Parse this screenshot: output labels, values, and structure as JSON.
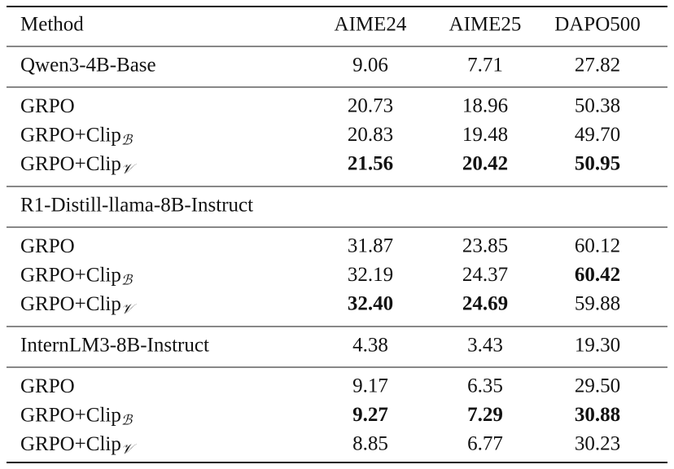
{
  "header": [
    "Method",
    "AIME24",
    "AIME25",
    "DAPO500"
  ],
  "groups": [
    {
      "model": {
        "name": "Qwen3-4B-Base",
        "values": [
          "9.06",
          "7.71",
          "27.82"
        ]
      },
      "rows": [
        {
          "method": "GRPO",
          "values": [
            "20.73",
            "18.96",
            "50.38"
          ],
          "bold": [
            false,
            false,
            false
          ]
        },
        {
          "method": "GRPO+Clip",
          "subscript": "ℬ",
          "values": [
            "20.83",
            "19.48",
            "49.70"
          ],
          "bold": [
            false,
            false,
            false
          ]
        },
        {
          "method": "GRPO+Clip",
          "subscript": "𝒱",
          "values": [
            "21.56",
            "20.42",
            "50.95"
          ],
          "bold": [
            true,
            true,
            true
          ]
        }
      ]
    },
    {
      "model": {
        "name": "R1-Distill-llama-8B-Instruct"
      },
      "rows": [
        {
          "method": "GRPO",
          "values": [
            "31.87",
            "23.85",
            "60.12"
          ],
          "bold": [
            false,
            false,
            false
          ]
        },
        {
          "method": "GRPO+Clip",
          "subscript": "ℬ",
          "values": [
            "32.19",
            "24.37",
            "60.42"
          ],
          "bold": [
            false,
            false,
            true
          ]
        },
        {
          "method": "GRPO+Clip",
          "subscript": "𝒱",
          "values": [
            "32.40",
            "24.69",
            "59.88"
          ],
          "bold": [
            true,
            true,
            false
          ]
        }
      ]
    },
    {
      "model": {
        "name": "InternLM3-8B-Instruct",
        "values": [
          "4.38",
          "3.43",
          "19.30"
        ]
      },
      "rows": [
        {
          "method": "GRPO",
          "values": [
            "9.17",
            "6.35",
            "29.50"
          ],
          "bold": [
            false,
            false,
            false
          ]
        },
        {
          "method": "GRPO+Clip",
          "subscript": "ℬ",
          "values": [
            "9.27",
            "7.29",
            "30.88"
          ],
          "bold": [
            true,
            true,
            true
          ]
        },
        {
          "method": "GRPO+Clip",
          "subscript": "𝒱",
          "values": [
            "8.85",
            "6.77",
            "30.23"
          ],
          "bold": [
            false,
            false,
            false
          ]
        }
      ]
    }
  ]
}
